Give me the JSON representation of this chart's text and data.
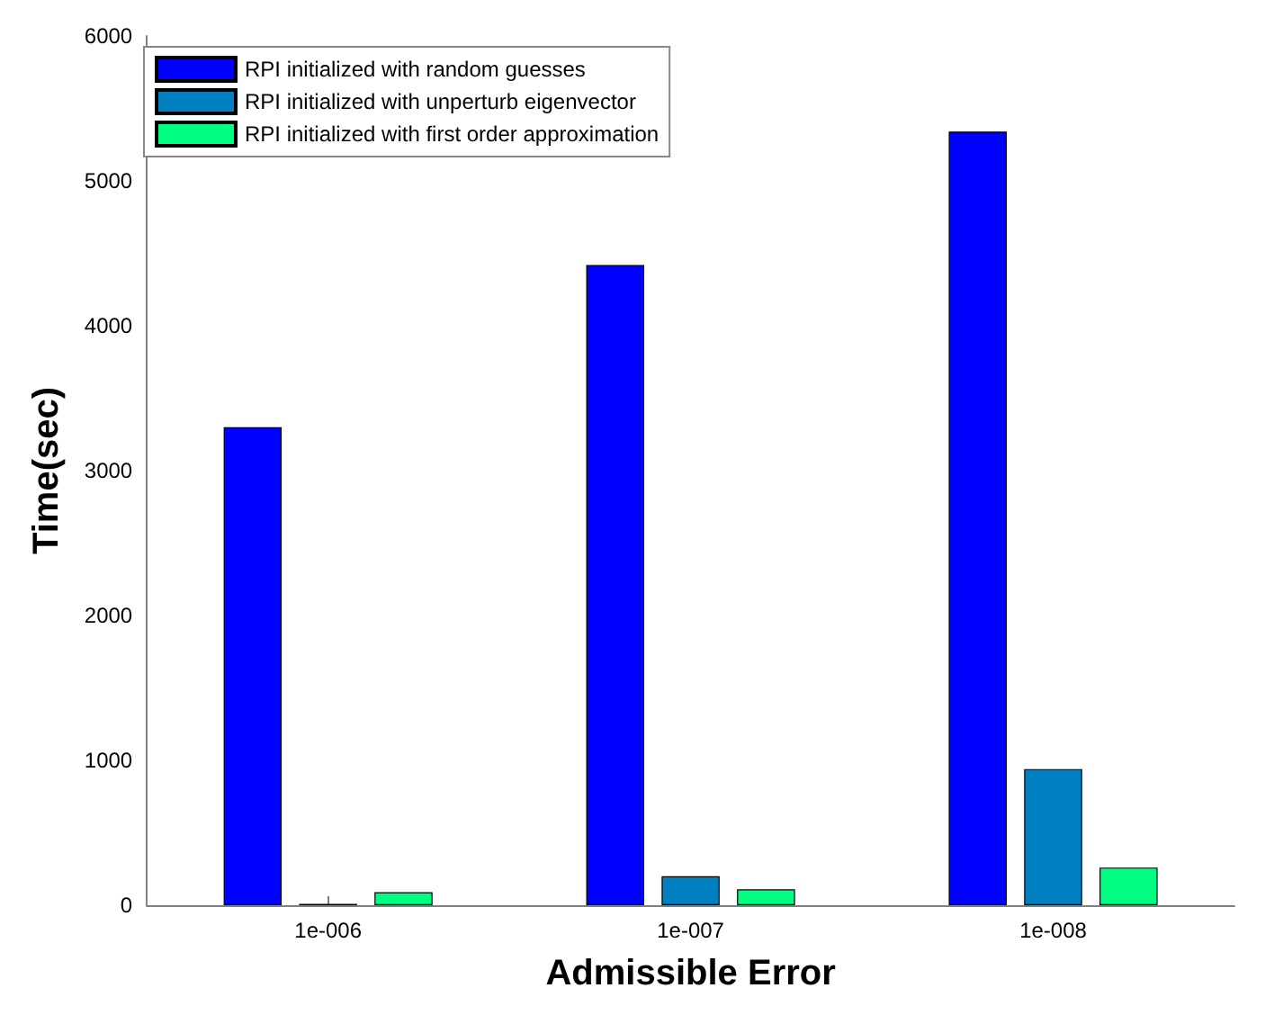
{
  "chart_data": {
    "type": "bar",
    "xlabel": "Admissible Error",
    "ylabel": "Time(sec)",
    "categories": [
      "1e-006",
      "1e-007",
      "1e-008"
    ],
    "series": [
      {
        "name": "RPI initialized with random guesses",
        "color": "#0000ff",
        "values": [
          3300,
          4420,
          5340
        ]
      },
      {
        "name": "RPI initialized with unperturb eigenvector",
        "color": "#0080c0",
        "values": [
          10,
          200,
          940
        ]
      },
      {
        "name": "RPI initialized with first order approximation",
        "color": "#00ff80",
        "values": [
          90,
          110,
          260
        ]
      }
    ],
    "ylim": [
      0,
      6000
    ],
    "yticks": [
      0,
      1000,
      2000,
      3000,
      4000,
      5000,
      6000
    ],
    "grid": false,
    "legend": "top left"
  }
}
